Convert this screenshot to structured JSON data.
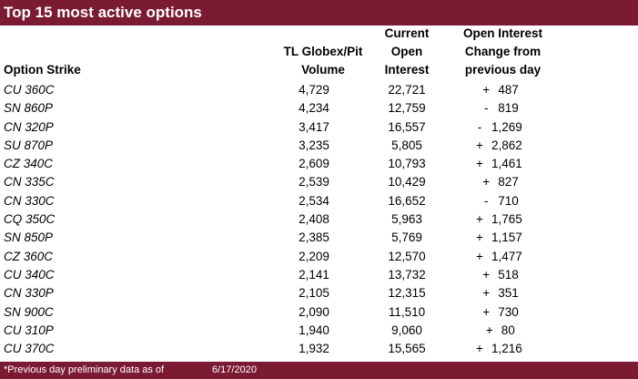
{
  "title": "Top 15 most active options",
  "headers": {
    "strike": "Option Strike",
    "volume_line1": "TL Globex/Pit",
    "volume_line2": "Volume",
    "oi_line1": "Current",
    "oi_line2": "Open",
    "oi_line3": "Interest",
    "chg_line1": "Open Interest",
    "chg_line2": "Change from",
    "chg_line3": "previous day"
  },
  "rows": [
    {
      "strike": "CU 360C",
      "volume": "4,729",
      "oi": "22,721",
      "sign": "+",
      "change": "487"
    },
    {
      "strike": "SN 860P",
      "volume": "4,234",
      "oi": "12,759",
      "sign": "-",
      "change": "819"
    },
    {
      "strike": "CN 320P",
      "volume": "3,417",
      "oi": "16,557",
      "sign": "-",
      "change": "1,269"
    },
    {
      "strike": "SU 870P",
      "volume": "3,235",
      "oi": "5,805",
      "sign": "+",
      "change": "2,862"
    },
    {
      "strike": "CZ 340C",
      "volume": "2,609",
      "oi": "10,793",
      "sign": "+",
      "change": "1,461"
    },
    {
      "strike": "CN 335C",
      "volume": "2,539",
      "oi": "10,429",
      "sign": "+",
      "change": "827"
    },
    {
      "strike": "CN 330C",
      "volume": "2,534",
      "oi": "16,652",
      "sign": "-",
      "change": "710"
    },
    {
      "strike": "CQ 350C",
      "volume": "2,408",
      "oi": "5,963",
      "sign": "+",
      "change": "1,765"
    },
    {
      "strike": "SN 850P",
      "volume": "2,385",
      "oi": "5,769",
      "sign": "+",
      "change": "1,157"
    },
    {
      "strike": "CZ 360C",
      "volume": "2,209",
      "oi": "12,570",
      "sign": "+",
      "change": "1,477"
    },
    {
      "strike": "CU 340C",
      "volume": "2,141",
      "oi": "13,732",
      "sign": "+",
      "change": "518"
    },
    {
      "strike": "CN 330P",
      "volume": "2,105",
      "oi": "12,315",
      "sign": "+",
      "change": "351"
    },
    {
      "strike": "SN 900C",
      "volume": "2,090",
      "oi": "11,510",
      "sign": "+",
      "change": "730"
    },
    {
      "strike": "CU 310P",
      "volume": "1,940",
      "oi": "9,060",
      "sign": "+",
      "change": "80"
    },
    {
      "strike": "CU 370C",
      "volume": "1,932",
      "oi": "15,565",
      "sign": "+",
      "change": "1,216"
    }
  ],
  "footer": {
    "note": "*Previous day preliminary data as of",
    "date": "6/17/2020"
  },
  "colors": {
    "accent": "#7b1a33"
  }
}
